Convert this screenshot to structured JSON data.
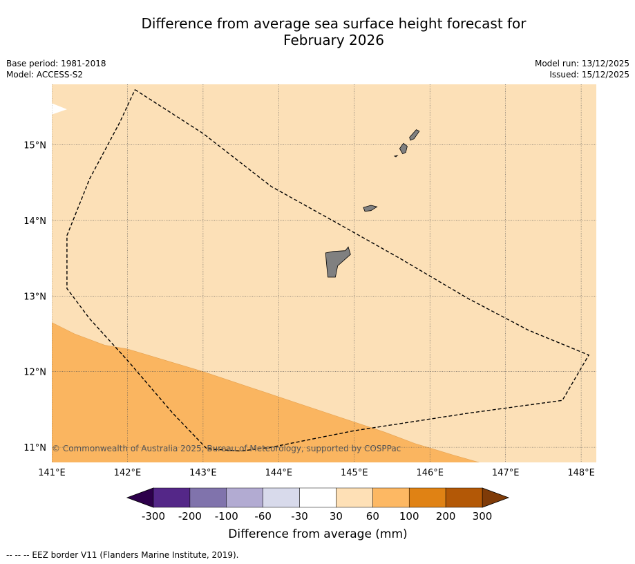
{
  "title_line1": "Difference from average sea surface height forecast for",
  "title_line2": "February 2026",
  "meta_left": [
    "Base period: 1981-2018",
    "Model: ACCESS-S2"
  ],
  "meta_right": [
    "Model run: 13/12/2025",
    "Issued: 15/12/2025"
  ],
  "copyright": "© Commonwealth of Australia 2025, Bureau of Meteorology, supported by COSPPac",
  "map": {
    "lon_range": [
      141.0,
      148.2
    ],
    "lat_range": [
      10.8,
      15.8
    ],
    "lon_ticks": [
      {
        "value": 141,
        "label": "141°E"
      },
      {
        "value": 142,
        "label": "142°E"
      },
      {
        "value": 143,
        "label": "143°E"
      },
      {
        "value": 144,
        "label": "144°E"
      },
      {
        "value": 145,
        "label": "145°E"
      },
      {
        "value": 146,
        "label": "146°E"
      },
      {
        "value": 147,
        "label": "147°E"
      },
      {
        "value": 148,
        "label": "148°E"
      }
    ],
    "lat_ticks": [
      {
        "value": 15,
        "label": "15°N"
      },
      {
        "value": 14,
        "label": "14°N"
      },
      {
        "value": 13,
        "label": "13°N"
      },
      {
        "value": 12,
        "label": "12°N"
      },
      {
        "value": 11,
        "label": "11°N"
      }
    ],
    "ocean_color": "#fce0b7",
    "higher_band_color": "#fab560",
    "land_color": "#808080",
    "higher_band_boundary": [
      [
        141.0,
        12.65
      ],
      [
        141.3,
        12.5
      ],
      [
        141.7,
        12.35
      ],
      [
        142.0,
        12.3
      ],
      [
        142.5,
        12.15
      ],
      [
        143.0,
        12.0
      ],
      [
        143.6,
        11.8
      ],
      [
        144.2,
        11.6
      ],
      [
        144.8,
        11.4
      ],
      [
        145.4,
        11.2
      ],
      [
        145.8,
        11.05
      ],
      [
        146.3,
        10.9
      ],
      [
        146.65,
        10.8
      ]
    ],
    "white_sliver": [
      [
        141.0,
        15.55
      ],
      [
        141.2,
        15.47
      ],
      [
        141.0,
        15.4
      ]
    ],
    "eez_border": [
      [
        142.1,
        15.73
      ],
      [
        143.0,
        15.15
      ],
      [
        143.9,
        14.45
      ],
      [
        144.8,
        13.95
      ],
      [
        145.6,
        13.5
      ],
      [
        146.5,
        12.97
      ],
      [
        147.3,
        12.55
      ],
      [
        148.1,
        12.22
      ],
      [
        147.75,
        11.62
      ],
      [
        146.5,
        11.45
      ],
      [
        145.0,
        11.22
      ],
      [
        143.9,
        11.0
      ],
      [
        143.5,
        10.95
      ],
      [
        143.05,
        10.98
      ],
      [
        142.6,
        11.45
      ],
      [
        142.0,
        12.15
      ],
      [
        141.5,
        12.7
      ],
      [
        141.2,
        13.1
      ],
      [
        141.2,
        13.8
      ],
      [
        141.5,
        14.55
      ],
      [
        141.9,
        15.3
      ],
      [
        142.1,
        15.73
      ]
    ],
    "islands": [
      {
        "name": "guam",
        "points": [
          [
            144.72,
            13.59
          ],
          [
            144.88,
            13.6
          ],
          [
            144.92,
            13.65
          ],
          [
            144.95,
            13.55
          ],
          [
            144.78,
            13.4
          ],
          [
            144.75,
            13.25
          ],
          [
            144.65,
            13.25
          ],
          [
            144.63,
            13.45
          ],
          [
            144.62,
            13.57
          ]
        ]
      },
      {
        "name": "rota",
        "points": [
          [
            145.12,
            14.17
          ],
          [
            145.22,
            14.2
          ],
          [
            145.3,
            14.18
          ],
          [
            145.22,
            14.13
          ],
          [
            145.14,
            14.12
          ]
        ]
      },
      {
        "name": "tinian",
        "points": [
          [
            145.6,
            14.95
          ],
          [
            145.65,
            15.02
          ],
          [
            145.7,
            14.98
          ],
          [
            145.68,
            14.9
          ],
          [
            145.64,
            14.88
          ]
        ]
      },
      {
        "name": "saipan",
        "points": [
          [
            145.73,
            15.1
          ],
          [
            145.82,
            15.2
          ],
          [
            145.86,
            15.18
          ],
          [
            145.79,
            15.08
          ],
          [
            145.74,
            15.06
          ]
        ]
      },
      {
        "name": "aguijan",
        "points": [
          [
            145.53,
            14.85
          ],
          [
            145.57,
            14.86
          ],
          [
            145.55,
            14.84
          ]
        ]
      }
    ]
  },
  "colorbar": {
    "label": "Difference from average (mm)",
    "under_color": "#2d004b",
    "over_color": "#7f3b08",
    "segments": [
      {
        "low": -300,
        "high": -200,
        "color": "#542788"
      },
      {
        "low": -200,
        "high": -100,
        "color": "#8073ac"
      },
      {
        "low": -100,
        "high": -60,
        "color": "#b2abd2"
      },
      {
        "low": -60,
        "high": -30,
        "color": "#d8daeb"
      },
      {
        "low": -30,
        "high": 30,
        "color": "#ffffff"
      },
      {
        "low": 30,
        "high": 60,
        "color": "#fee0b6"
      },
      {
        "low": 60,
        "high": 100,
        "color": "#fdb863"
      },
      {
        "low": 100,
        "high": 200,
        "color": "#e08214"
      },
      {
        "low": 200,
        "high": 300,
        "color": "#b35806"
      }
    ],
    "tick_labels": [
      "-300",
      "-200",
      "-100",
      "-60",
      "-30",
      "30",
      "60",
      "100",
      "200",
      "300"
    ]
  },
  "footnote": "--  --  -- EEZ border V11 (Flanders Marine Institute, 2019)."
}
